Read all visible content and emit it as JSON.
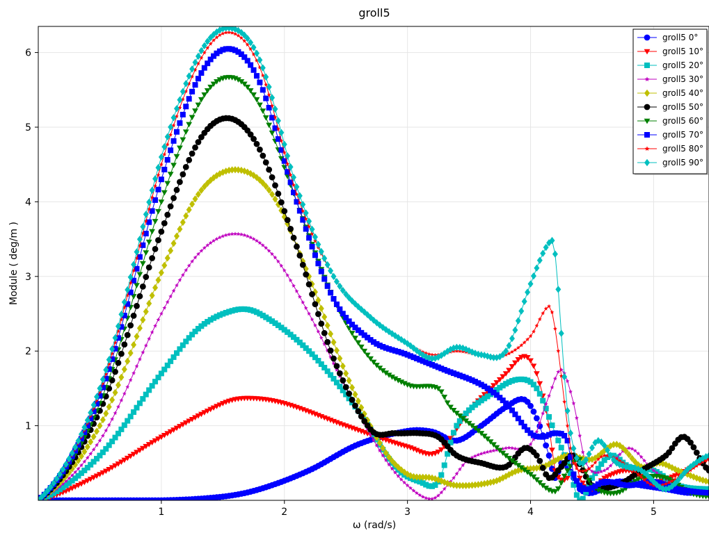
{
  "chart_data": {
    "type": "line",
    "title": "groll5",
    "xlabel": "ω (rad/s)",
    "ylabel": "Module  ( deg/m )",
    "xlim": [
      0,
      5.45
    ],
    "ylim": [
      0,
      6.35
    ],
    "xticks": [
      1,
      2,
      3,
      4,
      5
    ],
    "yticks": [
      1,
      2,
      3,
      4,
      5,
      6
    ],
    "grid": true,
    "legend_position": "top-right",
    "series": [
      {
        "name": "groll5 0°",
        "color": "#0000ff",
        "marker": "circle",
        "x": [
          0,
          1.0,
          1.5,
          1.8,
          2.2,
          2.6,
          3.0,
          3.2,
          3.4,
          3.6,
          3.8,
          3.95,
          4.05,
          4.15,
          4.2,
          4.25,
          4.3,
          4.35,
          4.4,
          4.5,
          4.7,
          4.9,
          5.1,
          5.3,
          5.45
        ],
        "y": [
          0,
          0.0,
          0.05,
          0.15,
          0.4,
          0.75,
          0.93,
          0.92,
          0.8,
          1.0,
          1.25,
          1.35,
          1.1,
          0.6,
          0.3,
          0.5,
          0.45,
          0.3,
          0.15,
          0.1,
          0.25,
          0.2,
          0.15,
          0.1,
          0.15
        ]
      },
      {
        "name": "groll5 10°",
        "color": "#ff0000",
        "marker": "triangle-down",
        "x": [
          0,
          0.5,
          1.0,
          1.5,
          1.7,
          2.0,
          2.5,
          3.0,
          3.25,
          3.5,
          3.8,
          3.95,
          4.05,
          4.15,
          4.2,
          4.3,
          4.35,
          4.4,
          4.5,
          4.6,
          4.8,
          5.0,
          5.2,
          5.45
        ],
        "y": [
          0,
          0.35,
          0.85,
          1.3,
          1.37,
          1.3,
          1.0,
          0.72,
          0.65,
          1.2,
          1.7,
          1.93,
          1.7,
          1.0,
          0.4,
          0.3,
          0.6,
          0.3,
          0.15,
          0.3,
          0.4,
          0.25,
          0.35,
          0.55
        ]
      },
      {
        "name": "groll5 20°",
        "color": "#00bfbf",
        "marker": "square",
        "x": [
          0,
          0.5,
          1.0,
          1.3,
          1.6,
          1.8,
          2.2,
          2.6,
          2.9,
          3.1,
          3.25,
          3.4,
          3.7,
          3.9,
          4.05,
          4.2,
          4.3,
          4.4,
          4.5,
          4.65,
          4.8,
          5.0,
          5.2,
          5.45
        ],
        "y": [
          0,
          0.6,
          1.7,
          2.3,
          2.55,
          2.5,
          2.0,
          1.2,
          0.45,
          0.25,
          0.25,
          1.0,
          1.45,
          1.62,
          1.5,
          0.9,
          0.5,
          0.0,
          0.3,
          0.6,
          0.45,
          0.4,
          0.2,
          0.15
        ]
      },
      {
        "name": "groll5 30°",
        "color": "#bf00bf",
        "marker": "star",
        "x": [
          0,
          0.5,
          1.0,
          1.3,
          1.6,
          1.9,
          2.2,
          2.5,
          2.8,
          3.0,
          3.2,
          3.35,
          3.5,
          3.8,
          4.0,
          4.15,
          4.25,
          4.35,
          4.45,
          4.6,
          4.8,
          5.0,
          5.2,
          5.45
        ],
        "y": [
          0,
          0.8,
          2.5,
          3.3,
          3.57,
          3.3,
          2.5,
          1.5,
          0.6,
          0.2,
          0.02,
          0.25,
          0.55,
          0.7,
          0.75,
          1.4,
          1.75,
          1.3,
          0.5,
          0.4,
          0.7,
          0.4,
          0.2,
          0.05
        ]
      },
      {
        "name": "groll5 40°",
        "color": "#bfbf00",
        "marker": "diamond",
        "x": [
          0,
          0.5,
          1.0,
          1.3,
          1.6,
          1.9,
          2.2,
          2.5,
          2.8,
          3.0,
          3.2,
          3.4,
          3.7,
          3.9,
          4.1,
          4.3,
          4.5,
          4.7,
          4.9,
          5.05,
          5.2,
          5.45
        ],
        "y": [
          0,
          1.0,
          3.05,
          4.1,
          4.43,
          4.1,
          3.0,
          1.7,
          0.7,
          0.35,
          0.3,
          0.2,
          0.25,
          0.4,
          0.45,
          0.6,
          0.55,
          0.75,
          0.45,
          0.5,
          0.4,
          0.25
        ]
      },
      {
        "name": "groll5 50°",
        "color": "#000000",
        "marker": "circle",
        "x": [
          0,
          0.5,
          1.0,
          1.3,
          1.55,
          1.8,
          2.1,
          2.4,
          2.7,
          2.9,
          3.1,
          3.25,
          3.4,
          3.6,
          3.8,
          3.95,
          4.05,
          4.15,
          4.25,
          4.35,
          4.5,
          4.7,
          4.9,
          5.1,
          5.25,
          5.45
        ],
        "y": [
          0,
          1.2,
          3.6,
          4.8,
          5.12,
          4.7,
          3.4,
          1.9,
          0.95,
          0.9,
          0.9,
          0.85,
          0.6,
          0.5,
          0.45,
          0.7,
          0.6,
          0.3,
          0.45,
          0.6,
          0.2,
          0.2,
          0.4,
          0.6,
          0.85,
          0.4
        ]
      },
      {
        "name": "groll5 60°",
        "color": "#007f00",
        "marker": "triangle-down",
        "x": [
          0,
          0.5,
          1.0,
          1.3,
          1.55,
          1.8,
          2.1,
          2.4,
          2.7,
          3.0,
          3.25,
          3.35,
          3.6,
          3.8,
          4.0,
          4.2,
          4.3,
          4.4,
          4.5,
          4.7,
          4.9,
          5.1,
          5.3,
          5.45
        ],
        "y": [
          0,
          1.3,
          4.0,
          5.3,
          5.67,
          5.3,
          4.0,
          2.7,
          1.9,
          1.55,
          1.5,
          1.25,
          0.9,
          0.6,
          0.35,
          0.12,
          0.4,
          0.55,
          0.2,
          0.1,
          0.3,
          0.3,
          0.1,
          0.05
        ]
      },
      {
        "name": "groll5 70°",
        "color": "#0000ff",
        "marker": "square",
        "x": [
          0,
          0.5,
          1.0,
          1.3,
          1.55,
          1.8,
          2.1,
          2.4,
          2.7,
          3.0,
          3.3,
          3.6,
          3.8,
          4.0,
          4.1,
          4.2,
          4.3,
          4.35,
          4.45,
          4.6,
          4.8,
          5.0,
          5.2,
          5.45
        ],
        "y": [
          0,
          1.4,
          4.3,
          5.65,
          6.05,
          5.6,
          4.0,
          2.7,
          2.15,
          1.95,
          1.75,
          1.55,
          1.3,
          0.9,
          0.85,
          0.9,
          0.8,
          0.35,
          0.15,
          0.25,
          0.2,
          0.25,
          0.15,
          0.1
        ]
      },
      {
        "name": "groll5 80°",
        "color": "#ff0000",
        "marker": "star",
        "x": [
          0,
          0.5,
          1.0,
          1.3,
          1.55,
          1.8,
          2.1,
          2.4,
          2.7,
          3.0,
          3.2,
          3.4,
          3.6,
          3.8,
          4.0,
          4.15,
          4.2,
          4.3,
          4.35,
          4.45,
          4.6,
          4.8,
          5.0,
          5.2,
          5.45
        ],
        "y": [
          0,
          1.45,
          4.5,
          5.85,
          6.27,
          5.8,
          4.1,
          3.0,
          2.45,
          2.1,
          1.95,
          2.0,
          1.95,
          1.95,
          2.2,
          2.6,
          2.3,
          1.0,
          0.5,
          0.4,
          0.6,
          0.45,
          0.2,
          0.3,
          0.55
        ]
      },
      {
        "name": "groll5 90°",
        "color": "#00bfbf",
        "marker": "diamond",
        "x": [
          0,
          0.5,
          1.0,
          1.3,
          1.55,
          1.8,
          2.1,
          2.4,
          2.7,
          3.0,
          3.2,
          3.4,
          3.6,
          3.8,
          4.0,
          4.15,
          4.2,
          4.3,
          4.4,
          4.55,
          4.7,
          4.9,
          5.1,
          5.3,
          5.45
        ],
        "y": [
          0,
          1.5,
          4.6,
          5.95,
          6.33,
          5.9,
          4.2,
          3.0,
          2.45,
          2.1,
          1.9,
          2.05,
          1.95,
          2.0,
          2.9,
          3.45,
          3.3,
          1.2,
          0.5,
          0.8,
          0.5,
          0.4,
          0.15,
          0.45,
          0.6
        ]
      }
    ]
  }
}
